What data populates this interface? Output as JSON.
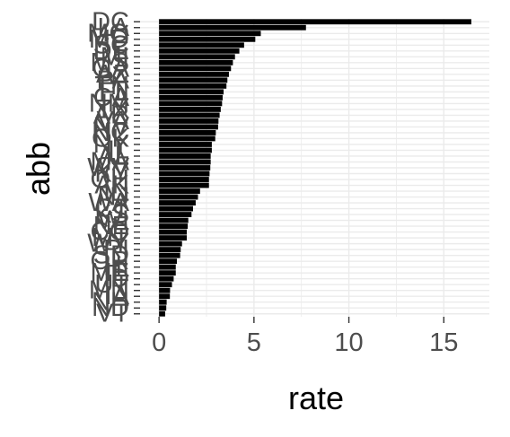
{
  "chart_data": {
    "type": "bar",
    "orientation": "horizontal",
    "xlabel": "rate",
    "ylabel": "abb",
    "xlim": [
      -1,
      17.4
    ],
    "x_ticks": [
      0,
      5,
      10,
      15
    ],
    "grid": true,
    "categories": [
      "DC",
      "LA",
      "MO",
      "MD",
      "SC",
      "DE",
      "MI",
      "MS",
      "GA",
      "AZ",
      "PA",
      "TN",
      "FL",
      "CA",
      "NM",
      "TX",
      "AR",
      "VA",
      "NV",
      "NC",
      "OK",
      "NY",
      "IL",
      "AL",
      "MA",
      "WV",
      "KY",
      "OH",
      "AK",
      "IN",
      "NJ",
      "WA",
      "CT",
      "KS",
      "WI",
      "NE",
      "CO",
      "MT",
      "WY",
      "RI",
      "SD",
      "OR",
      "HI",
      "ME",
      "ID",
      "UT",
      "MN",
      "IA",
      "NH",
      "ND",
      "VT"
    ],
    "values": [
      16.45,
      7.74,
      5.36,
      5.07,
      4.48,
      4.23,
      4.0,
      3.89,
      3.79,
      3.68,
      3.6,
      3.55,
      3.4,
      3.35,
      3.32,
      3.25,
      3.19,
      3.13,
      3.11,
      2.99,
      2.96,
      2.78,
      2.78,
      2.72,
      2.72,
      2.7,
      2.66,
      2.63,
      2.63,
      2.16,
      2.05,
      1.93,
      1.79,
      1.71,
      1.54,
      1.51,
      1.46,
      1.46,
      1.21,
      1.14,
      1.11,
      0.94,
      0.88,
      0.88,
      0.77,
      0.68,
      0.58,
      0.57,
      0.4,
      0.38,
      0.32
    ],
    "bar_color": "#000000",
    "grid_color": "#ebebeb",
    "tick_label_color": "#4d4d4d"
  }
}
